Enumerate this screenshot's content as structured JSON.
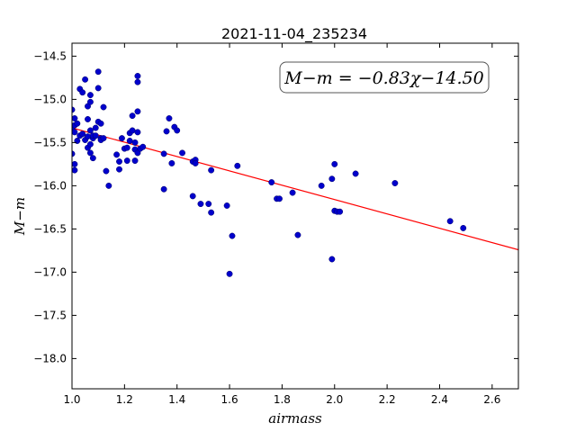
{
  "chart_data": {
    "type": "scatter",
    "title": "2021-11-04_235234",
    "xlabel": "airmass",
    "ylabel": "M−m",
    "xlim": [
      1.0,
      2.7
    ],
    "ylim": [
      -18.35,
      -14.35
    ],
    "y_inverted": true,
    "xticks": [
      1.0,
      1.2,
      1.4,
      1.6,
      1.8,
      2.0,
      2.2,
      2.4,
      2.6
    ],
    "xtick_labels": [
      "1.0",
      "1.2",
      "1.4",
      "1.6",
      "1.8",
      "2.0",
      "2.2",
      "2.4",
      "2.6"
    ],
    "yticks": [
      -14.5,
      -15.0,
      -15.5,
      -16.0,
      -16.5,
      -17.0,
      -17.5,
      -18.0
    ],
    "ytick_labels": [
      "−14.5",
      "−15.0",
      "−15.5",
      "−16.0",
      "−16.5",
      "−17.0",
      "−17.5",
      "−18.0"
    ],
    "annotation": "M−m = −0.83χ−14.50",
    "fit": {
      "slope": -0.83,
      "intercept": -14.5,
      "color": "#ff0000"
    },
    "point_color": "#0000cc",
    "series": [
      {
        "x": [
          1.0,
          1.0,
          1.0,
          1.01,
          1.01,
          1.01,
          1.01,
          1.01,
          1.02,
          1.02,
          1.03,
          1.03,
          1.04,
          1.04,
          1.05,
          1.05,
          1.06,
          1.06,
          1.06,
          1.06,
          1.07,
          1.07,
          1.07,
          1.07,
          1.07,
          1.08,
          1.08,
          1.08,
          1.09,
          1.09,
          1.1,
          1.1,
          1.1,
          1.11,
          1.11,
          1.11,
          1.12,
          1.12,
          1.13,
          1.14,
          1.17,
          1.18,
          1.18,
          1.19,
          1.2,
          1.21,
          1.21,
          1.22,
          1.22,
          1.23,
          1.23,
          1.24,
          1.24,
          1.24,
          1.25,
          1.25,
          1.25,
          1.25,
          1.25,
          1.26,
          1.27,
          1.35,
          1.35,
          1.36,
          1.37,
          1.38,
          1.39,
          1.4,
          1.42,
          1.46,
          1.46,
          1.47,
          1.47,
          1.49,
          1.52,
          1.53,
          1.53,
          1.59,
          1.6,
          1.61,
          1.63,
          1.76,
          1.78,
          1.79,
          1.84,
          1.86,
          1.95,
          1.99,
          1.99,
          2.0,
          2.0,
          2.01,
          2.02,
          2.08,
          2.23,
          2.44,
          2.49
        ],
        "y": [
          -15.12,
          -15.35,
          -15.63,
          -15.22,
          -15.3,
          -15.38,
          -15.75,
          -15.82,
          -15.28,
          -15.48,
          -14.88,
          -15.42,
          -14.92,
          -15.4,
          -14.77,
          -15.47,
          -15.08,
          -15.23,
          -15.43,
          -15.56,
          -14.95,
          -15.03,
          -15.36,
          -15.52,
          -15.62,
          -15.45,
          -15.68,
          -15.42,
          -15.33,
          -15.42,
          -14.68,
          -14.87,
          -15.26,
          -15.28,
          -15.45,
          -15.47,
          -15.45,
          -15.09,
          -15.83,
          -16.0,
          -15.64,
          -15.72,
          -15.81,
          -15.45,
          -15.57,
          -15.56,
          -15.71,
          -15.48,
          -15.39,
          -15.36,
          -15.19,
          -15.58,
          -15.71,
          -15.5,
          -14.73,
          -14.8,
          -15.14,
          -15.38,
          -15.62,
          -15.57,
          -15.55,
          -15.63,
          -16.04,
          -15.37,
          -15.22,
          -15.74,
          -15.32,
          -15.36,
          -15.62,
          -15.72,
          -16.12,
          -15.7,
          -15.74,
          -16.21,
          -16.21,
          -16.31,
          -15.82,
          -16.23,
          -17.02,
          -16.58,
          -15.77,
          -15.96,
          -16.15,
          -16.15,
          -16.08,
          -16.57,
          -16.0,
          -15.92,
          -16.85,
          -15.75,
          -16.29,
          -16.3,
          -16.3,
          -15.86,
          -15.97,
          -16.41,
          -16.49
        ]
      }
    ]
  }
}
